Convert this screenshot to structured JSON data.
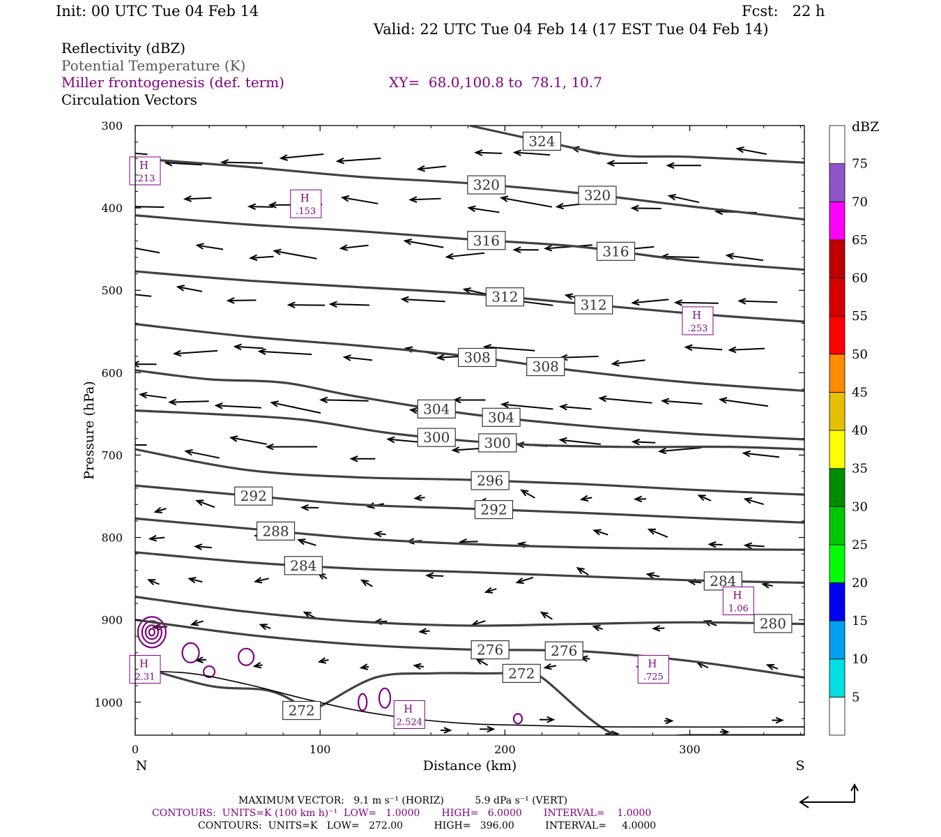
{
  "header": {
    "init": "Init: 00 UTC Tue 04 Feb 14",
    "fcst": "Fcst:   22 h",
    "valid": "Valid: 22 UTC Tue 04 Feb 14 (17 EST Tue 04 Feb 14)"
  },
  "fields": {
    "reflectivity": "Reflectivity (dBZ)",
    "theta": "Potential Temperature (K)",
    "frontogenesis": "Miller frontogenesis (def. term)",
    "xy": "XY=  68.0,100.8 to  78.1, 10.7",
    "vectors": "Circulation Vectors"
  },
  "colors": {
    "theta_line": "#404040",
    "fronto": "#800080",
    "text_gray": "#555555"
  },
  "chart_data": {
    "type": "line",
    "ylabel": "Pressure (hPa)",
    "xlabel": "Distance (km)",
    "xlim": [
      0,
      362
    ],
    "ylim": [
      300,
      1040
    ],
    "x_ticks": [
      "0",
      "100",
      "200",
      "300"
    ],
    "y_ticks": [
      "300",
      "400",
      "500",
      "600",
      "700",
      "800",
      "900",
      "1000"
    ],
    "left_end": "N",
    "right_end": "S",
    "isentropes": [
      {
        "label": "324",
        "x": [
          181,
          220,
          260,
          300,
          362
        ],
        "y": [
          300,
          319,
          336,
          338,
          345
        ]
      },
      {
        "label": "320",
        "x": [
          0,
          60,
          120,
          180,
          240,
          300,
          362
        ],
        "y": [
          340,
          350,
          362,
          370,
          382,
          398,
          414
        ]
      },
      {
        "label": "316",
        "x": [
          0,
          60,
          120,
          180,
          240,
          300,
          362
        ],
        "y": [
          409,
          420,
          428,
          438,
          447,
          464,
          475
        ]
      },
      {
        "label": "312",
        "x": [
          0,
          60,
          120,
          180,
          240,
          300,
          362
        ],
        "y": [
          477,
          488,
          496,
          504,
          516,
          528,
          538
        ]
      },
      {
        "label": "308",
        "x": [
          0,
          60,
          120,
          180,
          240,
          300,
          362
        ],
        "y": [
          541,
          556,
          567,
          580,
          598,
          612,
          622
        ]
      },
      {
        "label": "304",
        "x": [
          0,
          40,
          80,
          120,
          180,
          240,
          300,
          362
        ],
        "y": [
          597,
          608,
          612,
          629,
          650,
          664,
          674,
          681
        ]
      },
      {
        "label": "300",
        "x": [
          0,
          40,
          90,
          140,
          200,
          260,
          320,
          362
        ],
        "y": [
          646,
          650,
          657,
          674,
          686,
          690,
          690,
          693
        ]
      },
      {
        "label": "296",
        "x": [
          0,
          60,
          120,
          180,
          240,
          300,
          362
        ],
        "y": [
          693,
          718,
          727,
          730,
          735,
          742,
          748
        ]
      },
      {
        "label": "292",
        "x": [
          0,
          60,
          120,
          180,
          240,
          300,
          362
        ],
        "y": [
          737,
          749,
          760,
          765,
          770,
          776,
          782
        ]
      },
      {
        "label": "288",
        "x": [
          0,
          60,
          120,
          180,
          240,
          300,
          362
        ],
        "y": [
          777,
          789,
          801,
          808,
          812,
          814,
          815
        ]
      },
      {
        "label": "284",
        "x": [
          0,
          60,
          120,
          180,
          240,
          300,
          362
        ],
        "y": [
          818,
          830,
          838,
          842,
          847,
          852,
          855
        ]
      },
      {
        "label": "280",
        "x": [
          0,
          60,
          120,
          180,
          240,
          300,
          362
        ],
        "y": [
          872,
          890,
          902,
          907,
          905,
          903,
          905
        ]
      },
      {
        "label": "276",
        "x": [
          0,
          60,
          120,
          180,
          240,
          300,
          362
        ],
        "y": [
          900,
          918,
          930,
          936,
          938,
          950,
          970
        ]
      },
      {
        "label": "272",
        "x": [
          0,
          40,
          70,
          85,
          90,
          100,
          130,
          160,
          190,
          210,
          220,
          260,
          300,
          362
        ],
        "y": [
          955,
          980,
          985,
          998,
          1010,
          1005,
          970,
          965,
          965,
          965,
          970,
          1040,
          1040,
          1040
        ]
      }
    ],
    "terrain": {
      "x": [
        0,
        30,
        60,
        90,
        120,
        150,
        180,
        210,
        260,
        362
      ],
      "y": [
        962,
        965,
        978,
        995,
        1010,
        1020,
        1026,
        1028,
        1030,
        1030
      ]
    },
    "fronto_maxima": [
      {
        "label": "H",
        "value": ".213",
        "x": 0,
        "y": 355
      },
      {
        "label": "H",
        "value": ".153",
        "x": 84,
        "y": 395
      },
      {
        "label": "H",
        "value": ".253",
        "x": 296,
        "y": 537
      },
      {
        "label": "H",
        "value": "1.06",
        "x": 318,
        "y": 877
      },
      {
        "label": "H",
        "value": ".725",
        "x": 272,
        "y": 960
      },
      {
        "label": "H",
        "value": "2.524",
        "x": 140,
        "y": 1015
      },
      {
        "label": "H",
        "value": "2.31",
        "x": 0,
        "y": 960
      }
    ],
    "colorbar": {
      "title": "dBZ",
      "labels": [
        "5",
        "10",
        "15",
        "20",
        "25",
        "30",
        "35",
        "40",
        "45",
        "50",
        "55",
        "60",
        "65",
        "70",
        "75"
      ],
      "colors": [
        "#ffffff",
        "#00e0e0",
        "#00a0f0",
        "#0000f0",
        "#00ff00",
        "#00c800",
        "#008c00",
        "#ffff00",
        "#e6bf00",
        "#ff8c00",
        "#ff0000",
        "#d60000",
        "#c00000",
        "#ff00ff",
        "#9055c8",
        "#ffffff"
      ]
    }
  },
  "footer": {
    "max_vector": "MAXIMUM VECTOR:   9.1 m s⁻¹ (HORIZ)          5.9 dPa s⁻¹ (VERT)",
    "fronto_contours": "CONTOURS:  UNITS=K (100 km h)⁻¹  LOW=   1.0000       HIGH=   6.0000       INTERVAL=    1.0000",
    "theta_contours": "CONTOURS:  UNITS=K   LOW=   272.00          HIGH=   396.00          INTERVAL=     4.0000"
  }
}
